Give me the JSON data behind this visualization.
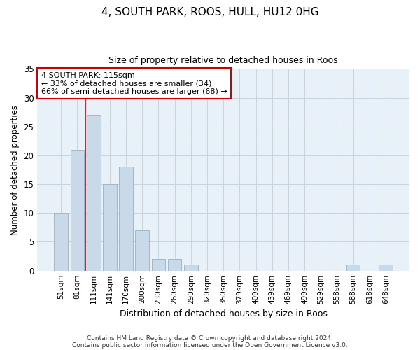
{
  "title1": "4, SOUTH PARK, ROOS, HULL, HU12 0HG",
  "title2": "Size of property relative to detached houses in Roos",
  "xlabel": "Distribution of detached houses by size in Roos",
  "ylabel": "Number of detached properties",
  "categories": [
    "51sqm",
    "81sqm",
    "111sqm",
    "141sqm",
    "170sqm",
    "200sqm",
    "230sqm",
    "260sqm",
    "290sqm",
    "320sqm",
    "350sqm",
    "379sqm",
    "409sqm",
    "439sqm",
    "469sqm",
    "499sqm",
    "529sqm",
    "558sqm",
    "588sqm",
    "618sqm",
    "648sqm"
  ],
  "values": [
    10,
    21,
    27,
    15,
    18,
    7,
    2,
    2,
    1,
    0,
    0,
    0,
    0,
    0,
    0,
    0,
    0,
    0,
    1,
    0,
    1
  ],
  "bar_color": "#c9d9e8",
  "bar_edgecolor": "#a0b8cc",
  "grid_color": "#c8d4e0",
  "background_color": "#e8f0f8",
  "vline_color": "#cc0000",
  "vline_x": 2,
  "annotation_text": "4 SOUTH PARK: 115sqm\n← 33% of detached houses are smaller (34)\n66% of semi-detached houses are larger (68) →",
  "annotation_box_edgecolor": "#cc0000",
  "ylim": [
    0,
    35
  ],
  "yticks": [
    0,
    5,
    10,
    15,
    20,
    25,
    30,
    35
  ],
  "footer1": "Contains HM Land Registry data © Crown copyright and database right 2024.",
  "footer2": "Contains public sector information licensed under the Open Government Licence v3.0."
}
